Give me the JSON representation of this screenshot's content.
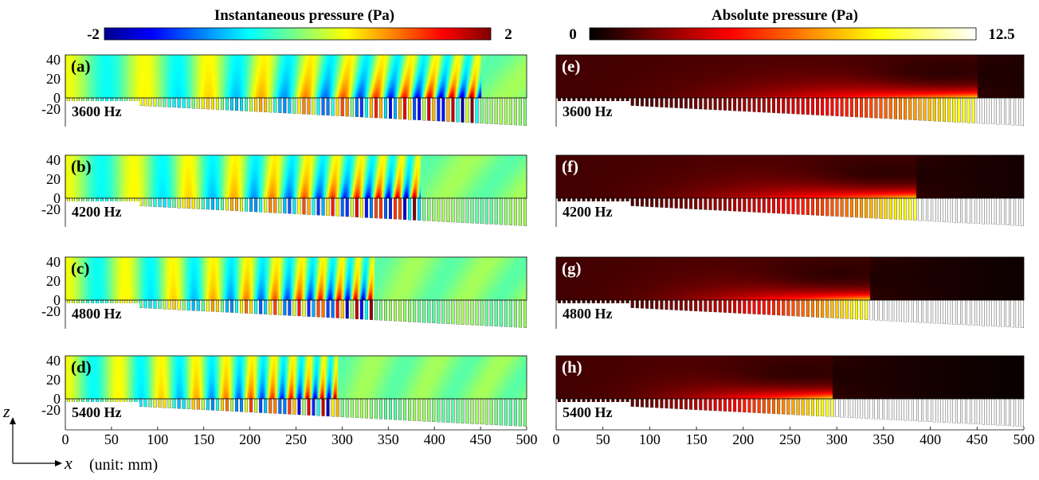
{
  "chart_data": {
    "type": "heatmap",
    "x_unit_label": "(unit: mm)",
    "x_axis_symbol": "x",
    "z_axis_symbol": "z",
    "x_ticks": [
      "0",
      "50",
      "100",
      "150",
      "200",
      "250",
      "300",
      "350",
      "400",
      "450",
      "500"
    ],
    "xlim": [
      0,
      500
    ],
    "z_ticks": [
      "40",
      "20",
      "0",
      "-20"
    ],
    "zlim": [
      -25,
      45
    ],
    "colorbars": [
      {
        "title": "Instantaneous pressure (Pa)",
        "min_label": "-2",
        "max_label": "2",
        "range": [
          -2,
          2
        ],
        "colormap": "jet"
      },
      {
        "title": "Absolute pressure (Pa)",
        "min_label": "0",
        "max_label": "12.5",
        "range": [
          0,
          12.5
        ],
        "colormap": "hot"
      }
    ],
    "panels": [
      {
        "label": "(a)",
        "frequency": "3600 Hz",
        "quantity": "instantaneous",
        "trap_x_mm": 450,
        "wavelength_mm": 95
      },
      {
        "label": "(b)",
        "frequency": "4200 Hz",
        "quantity": "instantaneous",
        "trap_x_mm": 385,
        "wavelength_mm": 82
      },
      {
        "label": "(c)",
        "frequency": "4800 Hz",
        "quantity": "instantaneous",
        "trap_x_mm": 335,
        "wavelength_mm": 72
      },
      {
        "label": "(d)",
        "frequency": "5400 Hz",
        "quantity": "instantaneous",
        "trap_x_mm": 295,
        "wavelength_mm": 64
      },
      {
        "label": "(e)",
        "frequency": "3600 Hz",
        "quantity": "absolute",
        "trap_x_mm": 450
      },
      {
        "label": "(f)",
        "frequency": "4200 Hz",
        "quantity": "absolute",
        "trap_x_mm": 385
      },
      {
        "label": "(g)",
        "frequency": "4800 Hz",
        "quantity": "absolute",
        "trap_x_mm": 335
      },
      {
        "label": "(h)",
        "frequency": "5400 Hz",
        "quantity": "absolute",
        "trap_x_mm": 295
      }
    ],
    "grid": false
  }
}
